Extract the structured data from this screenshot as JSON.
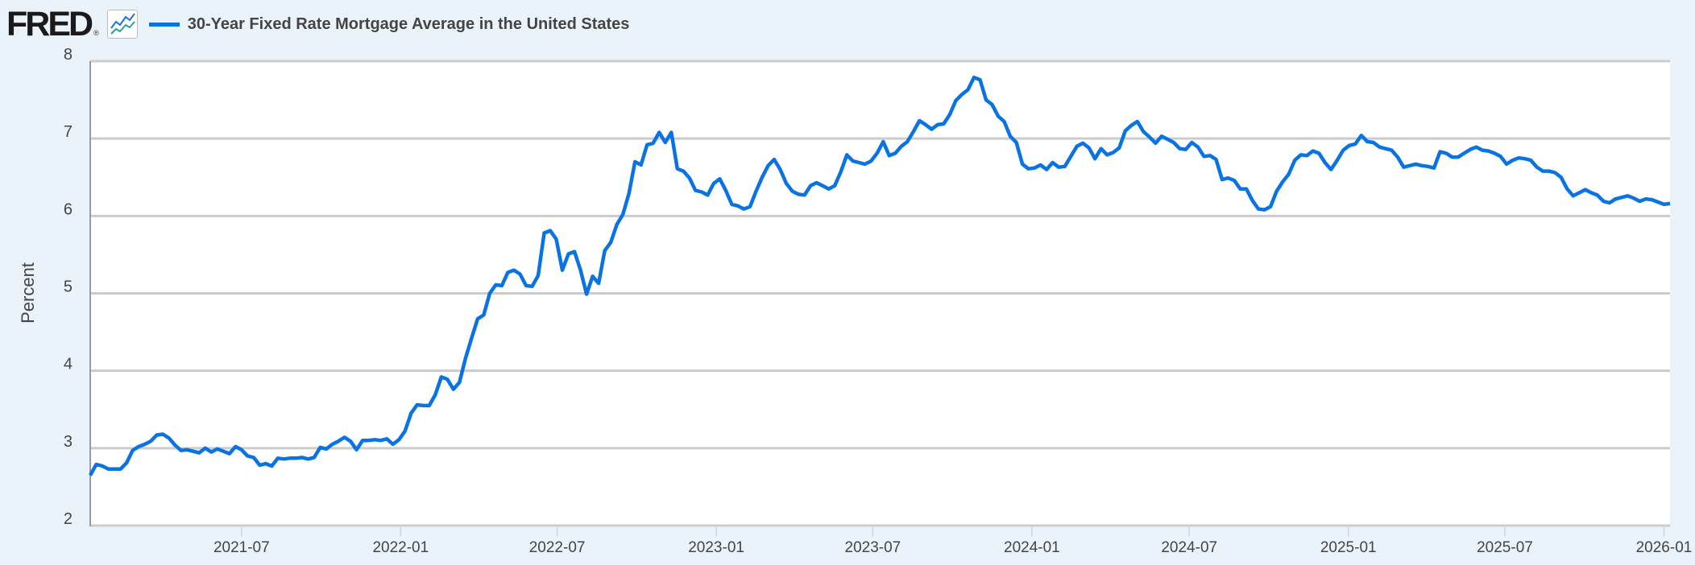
{
  "header": {
    "logo": "FRED",
    "logo_mark": "®",
    "icon": "chart-line-icon"
  },
  "chart_data": {
    "type": "line",
    "title": "30-Year Fixed Rate Mortgage Average in the United States",
    "xlabel": "",
    "ylabel": "Percent",
    "ylim": [
      2,
      8
    ],
    "xlim": [
      "2021-01-07",
      "2026-01-08"
    ],
    "y_ticks": [
      "2",
      "3",
      "4",
      "5",
      "6",
      "7",
      "8"
    ],
    "x_ticks": [
      "2021-07",
      "2022-01",
      "2022-07",
      "2023-01",
      "2023-07",
      "2024-01",
      "2024-07",
      "2025-01",
      "2025-07",
      "2026-01"
    ],
    "grid": "horizontal",
    "legend": "top-left",
    "colors": {
      "series": "#0a73e4",
      "grid": "#cccccc",
      "background": "#ebf3fa",
      "plot": "#ffffff"
    },
    "series": [
      {
        "name": "30-Year Fixed Rate Mortgage Average in the United States",
        "points": [
          [
            "2021-01-07",
            2.65
          ],
          [
            "2021-01-14",
            2.79
          ],
          [
            "2021-01-21",
            2.77
          ],
          [
            "2021-01-28",
            2.73
          ],
          [
            "2021-02-04",
            2.73
          ],
          [
            "2021-02-11",
            2.73
          ],
          [
            "2021-02-18",
            2.81
          ],
          [
            "2021-02-25",
            2.97
          ],
          [
            "2021-03-04",
            3.02
          ],
          [
            "2021-03-11",
            3.05
          ],
          [
            "2021-03-18",
            3.09
          ],
          [
            "2021-03-25",
            3.17
          ],
          [
            "2021-04-01",
            3.18
          ],
          [
            "2021-04-08",
            3.13
          ],
          [
            "2021-04-15",
            3.04
          ],
          [
            "2021-04-22",
            2.97
          ],
          [
            "2021-04-29",
            2.98
          ],
          [
            "2021-05-06",
            2.96
          ],
          [
            "2021-05-13",
            2.94
          ],
          [
            "2021-05-20",
            3.0
          ],
          [
            "2021-05-27",
            2.95
          ],
          [
            "2021-06-03",
            2.99
          ],
          [
            "2021-06-10",
            2.96
          ],
          [
            "2021-06-17",
            2.93
          ],
          [
            "2021-06-24",
            3.02
          ],
          [
            "2021-07-01",
            2.98
          ],
          [
            "2021-07-08",
            2.9
          ],
          [
            "2021-07-15",
            2.88
          ],
          [
            "2021-07-22",
            2.78
          ],
          [
            "2021-07-29",
            2.8
          ],
          [
            "2021-08-05",
            2.77
          ],
          [
            "2021-08-12",
            2.87
          ],
          [
            "2021-08-19",
            2.86
          ],
          [
            "2021-08-26",
            2.87
          ],
          [
            "2021-09-02",
            2.87
          ],
          [
            "2021-09-09",
            2.88
          ],
          [
            "2021-09-16",
            2.86
          ],
          [
            "2021-09-23",
            2.88
          ],
          [
            "2021-09-30",
            3.01
          ],
          [
            "2021-10-07",
            2.99
          ],
          [
            "2021-10-14",
            3.05
          ],
          [
            "2021-10-21",
            3.09
          ],
          [
            "2021-10-28",
            3.14
          ],
          [
            "2021-11-04",
            3.09
          ],
          [
            "2021-11-11",
            2.98
          ],
          [
            "2021-11-18",
            3.1
          ],
          [
            "2021-11-25",
            3.1
          ],
          [
            "2021-12-02",
            3.11
          ],
          [
            "2021-12-09",
            3.1
          ],
          [
            "2021-12-16",
            3.12
          ],
          [
            "2021-12-23",
            3.05
          ],
          [
            "2021-12-30",
            3.11
          ],
          [
            "2022-01-06",
            3.22
          ],
          [
            "2022-01-13",
            3.45
          ],
          [
            "2022-01-20",
            3.56
          ],
          [
            "2022-01-27",
            3.55
          ],
          [
            "2022-02-03",
            3.55
          ],
          [
            "2022-02-10",
            3.69
          ],
          [
            "2022-02-17",
            3.92
          ],
          [
            "2022-02-24",
            3.89
          ],
          [
            "2022-03-03",
            3.76
          ],
          [
            "2022-03-10",
            3.85
          ],
          [
            "2022-03-17",
            4.16
          ],
          [
            "2022-03-24",
            4.42
          ],
          [
            "2022-03-31",
            4.67
          ],
          [
            "2022-04-07",
            4.72
          ],
          [
            "2022-04-14",
            5.0
          ],
          [
            "2022-04-21",
            5.11
          ],
          [
            "2022-04-28",
            5.1
          ],
          [
            "2022-05-05",
            5.27
          ],
          [
            "2022-05-12",
            5.3
          ],
          [
            "2022-05-19",
            5.25
          ],
          [
            "2022-05-26",
            5.1
          ],
          [
            "2022-06-02",
            5.09
          ],
          [
            "2022-06-09",
            5.23
          ],
          [
            "2022-06-16",
            5.78
          ],
          [
            "2022-06-23",
            5.81
          ],
          [
            "2022-06-30",
            5.7
          ],
          [
            "2022-07-07",
            5.3
          ],
          [
            "2022-07-14",
            5.51
          ],
          [
            "2022-07-21",
            5.54
          ],
          [
            "2022-07-28",
            5.3
          ],
          [
            "2022-08-04",
            4.99
          ],
          [
            "2022-08-11",
            5.22
          ],
          [
            "2022-08-18",
            5.13
          ],
          [
            "2022-08-25",
            5.55
          ],
          [
            "2022-09-01",
            5.66
          ],
          [
            "2022-09-08",
            5.89
          ],
          [
            "2022-09-15",
            6.02
          ],
          [
            "2022-09-22",
            6.29
          ],
          [
            "2022-09-29",
            6.7
          ],
          [
            "2022-10-06",
            6.66
          ],
          [
            "2022-10-13",
            6.92
          ],
          [
            "2022-10-20",
            6.94
          ],
          [
            "2022-10-27",
            7.08
          ],
          [
            "2022-11-03",
            6.95
          ],
          [
            "2022-11-10",
            7.08
          ],
          [
            "2022-11-17",
            6.61
          ],
          [
            "2022-11-24",
            6.58
          ],
          [
            "2022-12-01",
            6.49
          ],
          [
            "2022-12-08",
            6.33
          ],
          [
            "2022-12-15",
            6.31
          ],
          [
            "2022-12-22",
            6.27
          ],
          [
            "2022-12-29",
            6.42
          ],
          [
            "2023-01-05",
            6.48
          ],
          [
            "2023-01-12",
            6.33
          ],
          [
            "2023-01-19",
            6.15
          ],
          [
            "2023-01-26",
            6.13
          ],
          [
            "2023-02-02",
            6.09
          ],
          [
            "2023-02-09",
            6.12
          ],
          [
            "2023-02-16",
            6.32
          ],
          [
            "2023-02-23",
            6.5
          ],
          [
            "2023-03-02",
            6.65
          ],
          [
            "2023-03-09",
            6.73
          ],
          [
            "2023-03-16",
            6.6
          ],
          [
            "2023-03-23",
            6.42
          ],
          [
            "2023-03-30",
            6.32
          ],
          [
            "2023-04-06",
            6.28
          ],
          [
            "2023-04-13",
            6.27
          ],
          [
            "2023-04-20",
            6.39
          ],
          [
            "2023-04-27",
            6.43
          ],
          [
            "2023-05-04",
            6.39
          ],
          [
            "2023-05-11",
            6.35
          ],
          [
            "2023-05-18",
            6.39
          ],
          [
            "2023-05-25",
            6.57
          ],
          [
            "2023-06-01",
            6.79
          ],
          [
            "2023-06-08",
            6.71
          ],
          [
            "2023-06-15",
            6.69
          ],
          [
            "2023-06-22",
            6.67
          ],
          [
            "2023-06-29",
            6.71
          ],
          [
            "2023-07-06",
            6.81
          ],
          [
            "2023-07-13",
            6.96
          ],
          [
            "2023-07-20",
            6.78
          ],
          [
            "2023-07-27",
            6.81
          ],
          [
            "2023-08-03",
            6.9
          ],
          [
            "2023-08-10",
            6.96
          ],
          [
            "2023-08-17",
            7.09
          ],
          [
            "2023-08-24",
            7.23
          ],
          [
            "2023-08-31",
            7.18
          ],
          [
            "2023-09-07",
            7.12
          ],
          [
            "2023-09-14",
            7.18
          ],
          [
            "2023-09-21",
            7.19
          ],
          [
            "2023-09-28",
            7.31
          ],
          [
            "2023-10-05",
            7.49
          ],
          [
            "2023-10-12",
            7.57
          ],
          [
            "2023-10-19",
            7.63
          ],
          [
            "2023-10-26",
            7.79
          ],
          [
            "2023-11-02",
            7.76
          ],
          [
            "2023-11-09",
            7.5
          ],
          [
            "2023-11-16",
            7.44
          ],
          [
            "2023-11-23",
            7.29
          ],
          [
            "2023-11-30",
            7.22
          ],
          [
            "2023-12-07",
            7.03
          ],
          [
            "2023-12-14",
            6.95
          ],
          [
            "2023-12-21",
            6.67
          ],
          [
            "2023-12-28",
            6.61
          ],
          [
            "2024-01-04",
            6.62
          ],
          [
            "2024-01-11",
            6.66
          ],
          [
            "2024-01-18",
            6.6
          ],
          [
            "2024-01-25",
            6.69
          ],
          [
            "2024-02-01",
            6.63
          ],
          [
            "2024-02-08",
            6.64
          ],
          [
            "2024-02-15",
            6.77
          ],
          [
            "2024-02-22",
            6.9
          ],
          [
            "2024-02-29",
            6.94
          ],
          [
            "2024-03-07",
            6.88
          ],
          [
            "2024-03-14",
            6.74
          ],
          [
            "2024-03-21",
            6.87
          ],
          [
            "2024-03-28",
            6.79
          ],
          [
            "2024-04-04",
            6.82
          ],
          [
            "2024-04-11",
            6.88
          ],
          [
            "2024-04-18",
            7.1
          ],
          [
            "2024-04-25",
            7.17
          ],
          [
            "2024-05-02",
            7.22
          ],
          [
            "2024-05-09",
            7.09
          ],
          [
            "2024-05-16",
            7.02
          ],
          [
            "2024-05-23",
            6.94
          ],
          [
            "2024-05-30",
            7.03
          ],
          [
            "2024-06-06",
            6.99
          ],
          [
            "2024-06-13",
            6.95
          ],
          [
            "2024-06-20",
            6.87
          ],
          [
            "2024-06-27",
            6.86
          ],
          [
            "2024-07-04",
            6.95
          ],
          [
            "2024-07-11",
            6.89
          ],
          [
            "2024-07-18",
            6.77
          ],
          [
            "2024-07-25",
            6.78
          ],
          [
            "2024-08-01",
            6.73
          ],
          [
            "2024-08-08",
            6.47
          ],
          [
            "2024-08-15",
            6.49
          ],
          [
            "2024-08-22",
            6.46
          ],
          [
            "2024-08-29",
            6.35
          ],
          [
            "2024-09-05",
            6.35
          ],
          [
            "2024-09-12",
            6.2
          ],
          [
            "2024-09-19",
            6.09
          ],
          [
            "2024-09-26",
            6.08
          ],
          [
            "2024-10-03",
            6.12
          ],
          [
            "2024-10-10",
            6.32
          ],
          [
            "2024-10-17",
            6.44
          ],
          [
            "2024-10-24",
            6.54
          ],
          [
            "2024-10-31",
            6.72
          ],
          [
            "2024-11-07",
            6.79
          ],
          [
            "2024-11-14",
            6.78
          ],
          [
            "2024-11-21",
            6.84
          ],
          [
            "2024-11-28",
            6.81
          ],
          [
            "2024-12-05",
            6.69
          ],
          [
            "2024-12-12",
            6.6
          ],
          [
            "2024-12-19",
            6.72
          ],
          [
            "2024-12-26",
            6.85
          ],
          [
            "2025-01-02",
            6.91
          ],
          [
            "2025-01-09",
            6.93
          ],
          [
            "2025-01-16",
            7.04
          ],
          [
            "2025-01-23",
            6.96
          ],
          [
            "2025-01-30",
            6.95
          ],
          [
            "2025-02-06",
            6.89
          ],
          [
            "2025-02-13",
            6.87
          ],
          [
            "2025-02-20",
            6.85
          ],
          [
            "2025-02-27",
            6.76
          ],
          [
            "2025-03-06",
            6.63
          ],
          [
            "2025-03-13",
            6.65
          ],
          [
            "2025-03-20",
            6.67
          ],
          [
            "2025-03-27",
            6.65
          ],
          [
            "2025-04-03",
            6.64
          ],
          [
            "2025-04-10",
            6.62
          ],
          [
            "2025-04-17",
            6.83
          ],
          [
            "2025-04-24",
            6.81
          ],
          [
            "2025-05-01",
            6.76
          ],
          [
            "2025-05-08",
            6.76
          ],
          [
            "2025-05-15",
            6.81
          ],
          [
            "2025-05-22",
            6.86
          ],
          [
            "2025-05-29",
            6.89
          ],
          [
            "2025-06-05",
            6.85
          ],
          [
            "2025-06-12",
            6.84
          ],
          [
            "2025-06-19",
            6.81
          ],
          [
            "2025-06-26",
            6.77
          ],
          [
            "2025-07-03",
            6.67
          ],
          [
            "2025-07-10",
            6.72
          ],
          [
            "2025-07-17",
            6.75
          ],
          [
            "2025-07-24",
            6.74
          ],
          [
            "2025-07-31",
            6.72
          ],
          [
            "2025-08-07",
            6.63
          ],
          [
            "2025-08-14",
            6.58
          ],
          [
            "2025-08-21",
            6.58
          ],
          [
            "2025-08-28",
            6.56
          ],
          [
            "2025-09-04",
            6.5
          ],
          [
            "2025-09-11",
            6.35
          ],
          [
            "2025-09-18",
            6.26
          ],
          [
            "2025-09-25",
            6.3
          ],
          [
            "2025-10-02",
            6.34
          ],
          [
            "2025-10-09",
            6.3
          ],
          [
            "2025-10-16",
            6.27
          ],
          [
            "2025-10-23",
            6.19
          ],
          [
            "2025-10-30",
            6.17
          ],
          [
            "2025-11-06",
            6.22
          ],
          [
            "2025-11-13",
            6.24
          ],
          [
            "2025-11-20",
            6.26
          ],
          [
            "2025-11-27",
            6.23
          ],
          [
            "2025-12-04",
            6.19
          ],
          [
            "2025-12-11",
            6.22
          ],
          [
            "2025-12-18",
            6.21
          ],
          [
            "2025-12-25",
            6.18
          ],
          [
            "2026-01-01",
            6.15
          ],
          [
            "2026-01-08",
            6.16
          ]
        ]
      }
    ]
  }
}
